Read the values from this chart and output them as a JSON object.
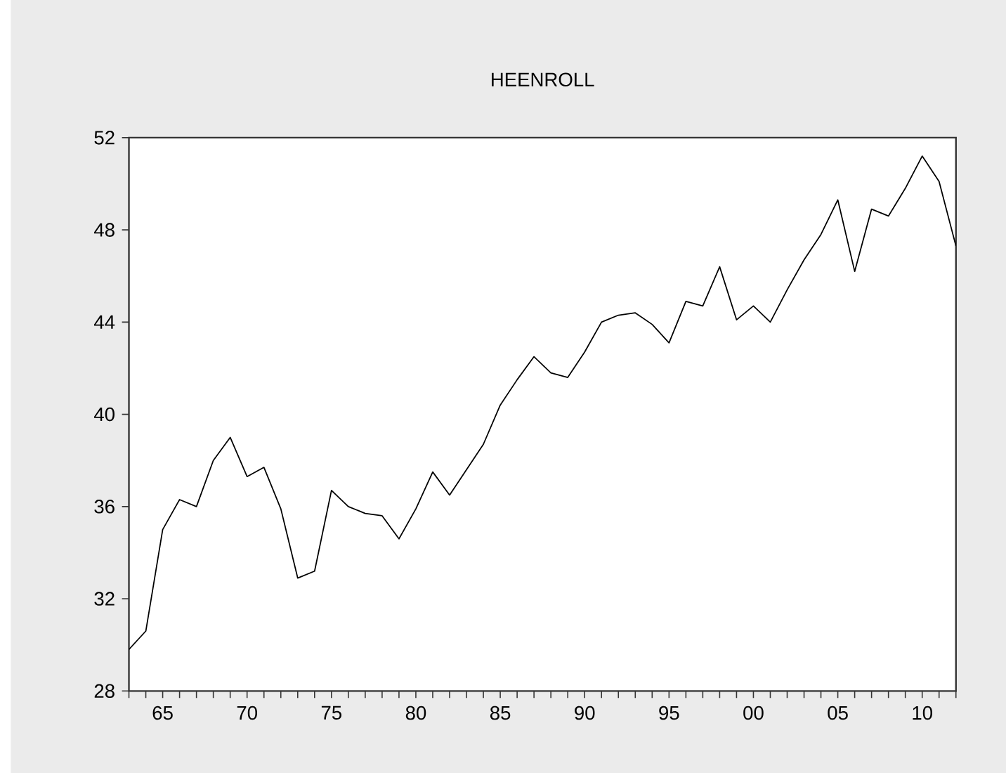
{
  "chart_data": {
    "type": "line",
    "title": "HEENROLL",
    "x": [
      1963,
      1964,
      1965,
      1966,
      1967,
      1968,
      1969,
      1970,
      1971,
      1972,
      1973,
      1974,
      1975,
      1976,
      1977,
      1978,
      1979,
      1980,
      1981,
      1982,
      1983,
      1984,
      1985,
      1986,
      1987,
      1988,
      1989,
      1990,
      1991,
      1992,
      1993,
      1994,
      1995,
      1996,
      1997,
      1998,
      1999,
      2000,
      2001,
      2002,
      2003,
      2004,
      2005,
      2006,
      2007,
      2008,
      2009,
      2010,
      2011,
      2012
    ],
    "values": [
      29.8,
      30.6,
      35.0,
      36.3,
      36.0,
      38.0,
      39.0,
      37.3,
      37.7,
      35.9,
      32.9,
      33.2,
      36.7,
      36.0,
      35.7,
      35.6,
      34.6,
      35.9,
      37.5,
      36.5,
      37.6,
      38.7,
      40.4,
      41.5,
      42.5,
      41.8,
      41.6,
      42.7,
      44.0,
      44.3,
      44.4,
      43.9,
      43.1,
      44.9,
      44.7,
      46.4,
      44.1,
      44.7,
      44.0,
      45.4,
      46.7,
      47.8,
      49.3,
      46.2,
      48.9,
      48.6,
      49.8,
      51.2,
      50.1,
      47.3
    ],
    "color": "#000000",
    "xlim": [
      1963,
      2012
    ],
    "ylim": [
      28,
      52
    ],
    "yticks": [
      28,
      32,
      36,
      40,
      44,
      48,
      52
    ],
    "xticks": [
      {
        "value": 1963,
        "label": null
      },
      {
        "value": 1964,
        "label": null
      },
      {
        "value": 1965,
        "label": "65"
      },
      {
        "value": 1966,
        "label": null
      },
      {
        "value": 1967,
        "label": null
      },
      {
        "value": 1968,
        "label": null
      },
      {
        "value": 1969,
        "label": null
      },
      {
        "value": 1970,
        "label": "70"
      },
      {
        "value": 1971,
        "label": null
      },
      {
        "value": 1972,
        "label": null
      },
      {
        "value": 1973,
        "label": null
      },
      {
        "value": 1974,
        "label": null
      },
      {
        "value": 1975,
        "label": "75"
      },
      {
        "value": 1976,
        "label": null
      },
      {
        "value": 1977,
        "label": null
      },
      {
        "value": 1978,
        "label": null
      },
      {
        "value": 1979,
        "label": null
      },
      {
        "value": 1980,
        "label": "80"
      },
      {
        "value": 1981,
        "label": null
      },
      {
        "value": 1982,
        "label": null
      },
      {
        "value": 1983,
        "label": null
      },
      {
        "value": 1984,
        "label": null
      },
      {
        "value": 1985,
        "label": "85"
      },
      {
        "value": 1986,
        "label": null
      },
      {
        "value": 1987,
        "label": null
      },
      {
        "value": 1988,
        "label": null
      },
      {
        "value": 1989,
        "label": null
      },
      {
        "value": 1990,
        "label": "90"
      },
      {
        "value": 1991,
        "label": null
      },
      {
        "value": 1992,
        "label": null
      },
      {
        "value": 1993,
        "label": null
      },
      {
        "value": 1994,
        "label": null
      },
      {
        "value": 1995,
        "label": "95"
      },
      {
        "value": 1996,
        "label": null
      },
      {
        "value": 1997,
        "label": null
      },
      {
        "value": 1998,
        "label": null
      },
      {
        "value": 1999,
        "label": null
      },
      {
        "value": 2000,
        "label": "00"
      },
      {
        "value": 2001,
        "label": null
      },
      {
        "value": 2002,
        "label": null
      },
      {
        "value": 2003,
        "label": null
      },
      {
        "value": 2004,
        "label": null
      },
      {
        "value": 2005,
        "label": "05"
      },
      {
        "value": 2006,
        "label": null
      },
      {
        "value": 2007,
        "label": null
      },
      {
        "value": 2008,
        "label": null
      },
      {
        "value": 2009,
        "label": null
      },
      {
        "value": 2010,
        "label": "10"
      },
      {
        "value": 2011,
        "label": null
      },
      {
        "value": 2012,
        "label": null
      }
    ],
    "marker": "none",
    "line_style": "solid"
  }
}
